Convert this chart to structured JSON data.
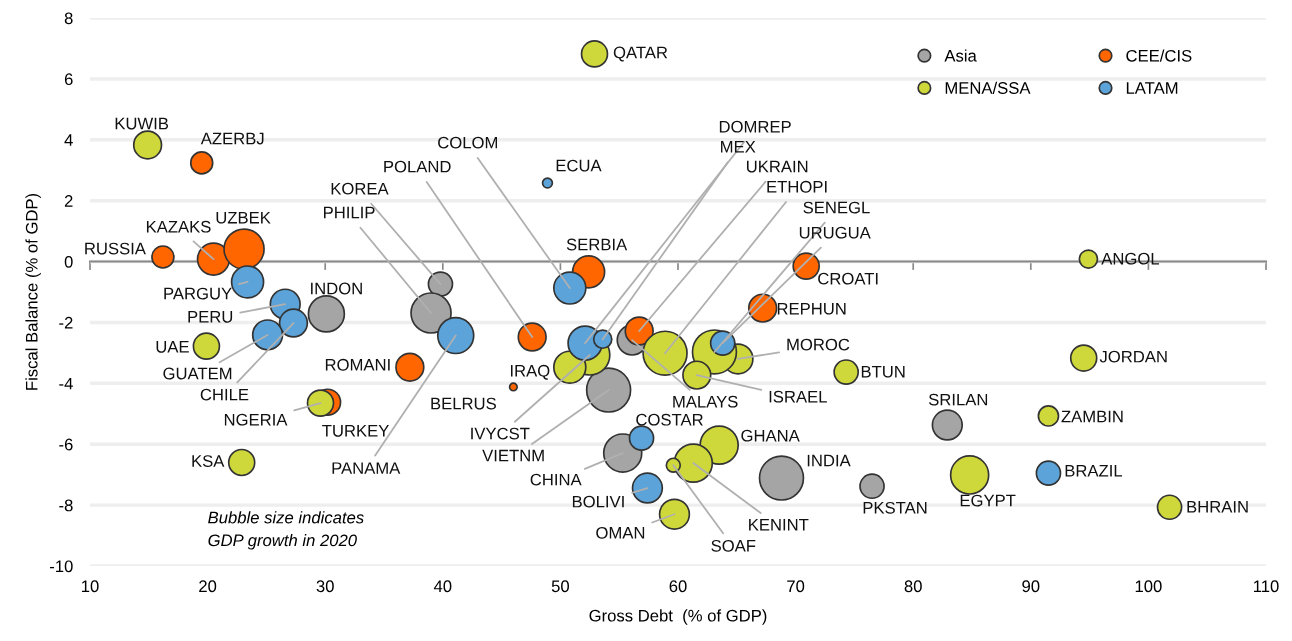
{
  "chart_data": {
    "type": "bubble",
    "xlabel": "Gross Debt  (% of GDP)",
    "ylabel": "Fiscal Balance (% of GDP)",
    "xlim": [
      10,
      110
    ],
    "xticks": [
      10,
      20,
      30,
      40,
      50,
      60,
      70,
      80,
      90,
      100,
      110
    ],
    "ylim": [
      -10,
      8
    ],
    "yticks": [
      -10,
      -8,
      -6,
      -4,
      -2,
      0,
      2,
      4,
      6,
      8
    ],
    "grid": "y",
    "legend": "top right",
    "marker": "circle",
    "series": [
      {
        "name": "Asia",
        "color": "#a5a5a5",
        "x": [
          39.8,
          39.0,
          30.1,
          56.1,
          54.1,
          55.3,
          68.8,
          76.5,
          82.9
        ],
        "values": [
          -0.74,
          -1.69,
          -1.72,
          -2.58,
          -4.22,
          -6.29,
          -7.11,
          -7.38,
          -5.37
        ],
        "sizes": [
          0.3,
          0.83,
          0.67,
          0.46,
          1,
          0.75,
          1,
          0.3,
          0.46
        ]
      },
      {
        "name": "CEE/CIS",
        "color": "#ff6600",
        "x": [
          19.5,
          16.2,
          20.5,
          23.1,
          37.2,
          30.2,
          47.6,
          46.0,
          52.4,
          56.7,
          70.9,
          67.2
        ],
        "values": [
          3.24,
          0.15,
          0.08,
          0.41,
          -3.47,
          -4.62,
          -2.48,
          -4.12,
          -0.34,
          -2.28,
          -0.15,
          -1.53
        ],
        "sizes": [
          0.25,
          0.25,
          0.53,
          0.83,
          0.4,
          0.35,
          0.4,
          0.03,
          0.53,
          0.4,
          0.35,
          0.4
        ]
      },
      {
        "name": "MENA/SSA",
        "color": "#cfd83b",
        "x": [
          14.9,
          19.9,
          29.6,
          22.9,
          52.9,
          94.9,
          94.5,
          91.5,
          101.8,
          84.8,
          74.3,
          65.1,
          58.9,
          63.1,
          52.5,
          50.8,
          61.6,
          63.5,
          61.3,
          59.6,
          59.7
        ],
        "values": [
          3.83,
          -2.78,
          -4.65,
          -6.6,
          6.82,
          0.08,
          -3.17,
          -5.07,
          -8.07,
          -7.01,
          -3.63,
          -3.2,
          -3.01,
          -2.97,
          -3.07,
          -3.47,
          -3.73,
          -6.03,
          -6.62,
          -6.69,
          -8.3
        ],
        "sizes": [
          0.4,
          0.35,
          0.35,
          0.35,
          0.35,
          0.17,
          0.35,
          0.21,
          0.3,
          0.75,
          0.3,
          0.46,
          1,
          1,
          0.83,
          0.53,
          0.4,
          0.75,
          0.75,
          0.1,
          0.46
        ]
      },
      {
        "name": "LATAM",
        "color": "#5ba3d9",
        "x": [
          48.9,
          23.4,
          26.6,
          27.3,
          25.1,
          41.1,
          50.8,
          52.1,
          53.6,
          63.8,
          56.9,
          57.4,
          91.5
        ],
        "values": [
          2.58,
          -0.67,
          -1.4,
          -2.02,
          -2.41,
          -2.43,
          -0.87,
          -2.68,
          -2.55,
          -2.68,
          -5.8,
          -7.44,
          -6.95
        ],
        "sizes": [
          0.05,
          0.53,
          0.46,
          0.4,
          0.46,
          0.67,
          0.53,
          0.6,
          0.17,
          0.3,
          0.3,
          0.46,
          0.3
        ]
      }
    ],
    "annotations": [
      {
        "text": "KUWIB",
        "x": 14.9,
        "y": 3.83
      },
      {
        "text": "AZERBJ",
        "x": 19.5,
        "y": 3.24
      },
      {
        "text": "RUSSIA",
        "x": 16.2,
        "y": 0.15
      },
      {
        "text": "KAZAKS",
        "x": 20.5,
        "y": 0.08
      },
      {
        "text": "UZBEK",
        "x": 23.1,
        "y": 0.41
      },
      {
        "text": "PARGUY",
        "x": 23.4,
        "y": -0.67
      },
      {
        "text": "PERU",
        "x": 26.6,
        "y": -1.4
      },
      {
        "text": "CHILE",
        "x": 27.3,
        "y": -2.02
      },
      {
        "text": "GUATEM",
        "x": 25.1,
        "y": -2.41
      },
      {
        "text": "UAE",
        "x": 19.9,
        "y": -2.78
      },
      {
        "text": "NGERIA",
        "x": 29.6,
        "y": -4.65
      },
      {
        "text": "TURKEY",
        "x": 30.2,
        "y": -4.62
      },
      {
        "text": "KSA",
        "x": 22.9,
        "y": -6.6
      },
      {
        "text": "INDON",
        "x": 30.1,
        "y": -1.72
      },
      {
        "text": "ROMANI",
        "x": 37.2,
        "y": -3.47
      },
      {
        "text": "KOREA",
        "x": 39.8,
        "y": -0.74
      },
      {
        "text": "PHILIP",
        "x": 39.0,
        "y": -1.69
      },
      {
        "text": "POLAND",
        "x": 47.6,
        "y": -2.48
      },
      {
        "text": "COLOM",
        "x": 50.8,
        "y": -0.87
      },
      {
        "text": "PANAMA",
        "x": 41.1,
        "y": -2.43
      },
      {
        "text": "ECUA",
        "x": 48.9,
        "y": 2.58
      },
      {
        "text": "QATAR",
        "x": 52.9,
        "y": 6.82
      },
      {
        "text": "SERBIA",
        "x": 52.4,
        "y": -0.34
      },
      {
        "text": "BELRUS",
        "x": 46.0,
        "y": -4.12
      },
      {
        "text": "IRAQ",
        "x": 50.8,
        "y": -3.47
      },
      {
        "text": "IVYCST",
        "x": 52.5,
        "y": -3.07
      },
      {
        "text": "VIETNM",
        "x": 54.1,
        "y": -4.22
      },
      {
        "text": "CHINA",
        "x": 55.3,
        "y": -6.29
      },
      {
        "text": "DOMREP",
        "x": 52.1,
        "y": -2.68
      },
      {
        "text": "MEX",
        "x": 53.6,
        "y": -2.55
      },
      {
        "text": "UKRAIN",
        "x": 56.7,
        "y": -2.28
      },
      {
        "text": "ETHOPI",
        "x": 58.9,
        "y": -3.01
      },
      {
        "text": "SENEGL",
        "x": 63.1,
        "y": -2.97
      },
      {
        "text": "URUGUA",
        "x": 63.8,
        "y": -2.68
      },
      {
        "text": "MALAYS",
        "x": 56.1,
        "y": -2.58
      },
      {
        "text": "MOROC",
        "x": 65.1,
        "y": -3.2
      },
      {
        "text": "ISRAEL",
        "x": 61.6,
        "y": -3.73
      },
      {
        "text": "COSTAR",
        "x": 56.9,
        "y": -5.8
      },
      {
        "text": "GHANA",
        "x": 63.5,
        "y": -6.03
      },
      {
        "text": "KENINT",
        "x": 61.3,
        "y": -6.62
      },
      {
        "text": "SOAF",
        "x": 59.6,
        "y": -6.69
      },
      {
        "text": "BOLIVI",
        "x": 57.4,
        "y": -7.44
      },
      {
        "text": "OMAN",
        "x": 59.7,
        "y": -8.3
      },
      {
        "text": "INDIA",
        "x": 68.8,
        "y": -7.11
      },
      {
        "text": "PKSTAN",
        "x": 76.5,
        "y": -7.38
      },
      {
        "text": "CROATI",
        "x": 70.9,
        "y": -0.15
      },
      {
        "text": "REPHUN",
        "x": 67.2,
        "y": -1.53
      },
      {
        "text": "BTUN",
        "x": 74.3,
        "y": -3.63
      },
      {
        "text": "SRILAN",
        "x": 82.9,
        "y": -5.37
      },
      {
        "text": "EGYPT",
        "x": 84.8,
        "y": -7.01
      },
      {
        "text": "BRAZIL",
        "x": 91.5,
        "y": -6.95
      },
      {
        "text": "ANGOL",
        "x": 94.9,
        "y": 0.08
      },
      {
        "text": "JORDAN",
        "x": 94.5,
        "y": -3.17
      },
      {
        "text": "ZAMBIN",
        "x": 91.5,
        "y": -5.07
      },
      {
        "text": "BHRAIN",
        "x": 101.8,
        "y": -8.07
      },
      "Bubble size indicates\nGDP growth in 2020"
    ]
  }
}
